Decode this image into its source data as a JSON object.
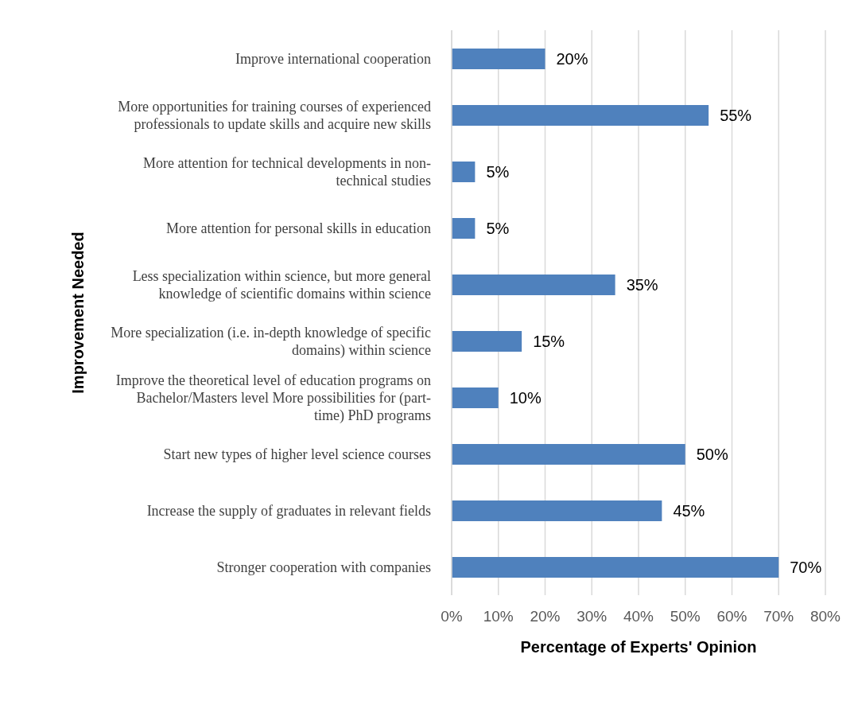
{
  "chart_data": {
    "type": "bar",
    "orientation": "horizontal",
    "xlabel": "Percentage of Experts' Opinion",
    "ylabel": "Improvement Needed",
    "categories": [
      "Improve international cooperation",
      "More opportunities for training courses of experienced professionals to update skills and acquire new skills",
      "More attention for technical developments in non-technical studies",
      "More attention for personal skills in education",
      "Less specialization within science, but more general knowledge of scientific domains within science",
      "More specialization (i.e. in-depth knowledge of specific domains) within science",
      "Improve the theoretical level of education programs on Bachelor/Masters level More possibilities for (part-time) PhD programs",
      "Start new types of higher level science courses",
      "Increase the supply of graduates in relevant fields",
      "Stronger cooperation with companies"
    ],
    "values": [
      20,
      55,
      5,
      5,
      35,
      15,
      10,
      50,
      45,
      70
    ],
    "value_labels": [
      "20%",
      "55%",
      "5%",
      "5%",
      "35%",
      "15%",
      "10%",
      "50%",
      "45%",
      "70%"
    ],
    "color": "#4f81bd",
    "xlim": [
      0,
      80
    ],
    "xticks": [
      {
        "value": 0,
        "label": "0%"
      },
      {
        "value": 10,
        "label": "10%"
      },
      {
        "value": 20,
        "label": "20%"
      },
      {
        "value": 30,
        "label": "30%"
      },
      {
        "value": 40,
        "label": "40%"
      },
      {
        "value": 50,
        "label": "50%"
      },
      {
        "value": 60,
        "label": "60%"
      },
      {
        "value": 70,
        "label": "70%"
      },
      {
        "value": 80,
        "label": "80%"
      }
    ],
    "grid": "x",
    "legend": false
  }
}
